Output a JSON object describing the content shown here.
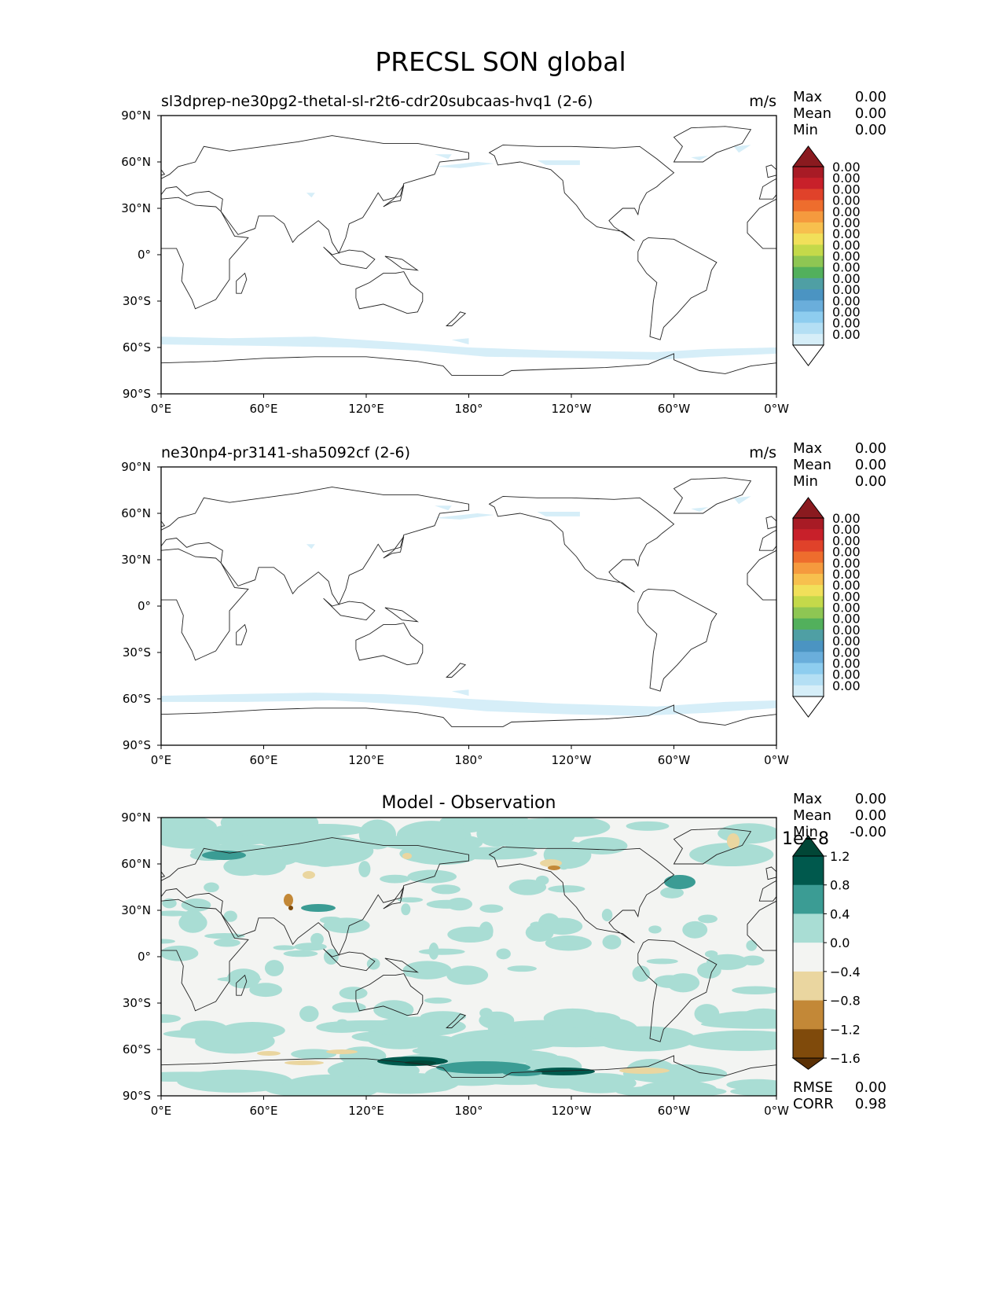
{
  "figure": {
    "title": "PRECSL SON global"
  },
  "x_ticks": [
    "0°E",
    "60°E",
    "120°E",
    "180°",
    "120°W",
    "60°W",
    "0°W"
  ],
  "y_ticks": [
    "90°N",
    "60°N",
    "30°N",
    "0°",
    "30°S",
    "60°S",
    "90°S"
  ],
  "stat_labels": {
    "max": "Max",
    "mean": "Mean",
    "min": "Min",
    "rmse": "RMSE",
    "corr": "CORR"
  },
  "panels": [
    {
      "title": "sl3dprep-ne30pg2-thetal-sl-r2t6-cdr20subcaas-hvq1 (2-6)",
      "units": "m/s",
      "stats": {
        "max": "0.00",
        "mean": "0.00",
        "min": "0.00"
      }
    },
    {
      "title": "ne30np4-pr3141-sha5092cf (2-6)",
      "units": "m/s",
      "stats": {
        "max": "0.00",
        "mean": "0.00",
        "min": "0.00"
      }
    },
    {
      "title": "Model - Observation",
      "stats": {
        "max": "0.00",
        "mean": "0.00",
        "min": "-0.00",
        "rmse": "0.00",
        "corr": "0.98"
      },
      "colorbar_offset": "1e−8"
    }
  ],
  "chart_data": [
    {
      "type": "heatmap",
      "title": "sl3dprep-ne30pg2-thetal-sl-r2t6-cdr20subcaas-hvq1 (2-6)",
      "units": "m/s",
      "projection": "PlateCarree, central longitude 180",
      "xlim": [
        0,
        360
      ],
      "ylim": [
        -90,
        90
      ],
      "x_tick_values": [
        0,
        60,
        120,
        180,
        240,
        300,
        360
      ],
      "y_tick_values": [
        90,
        60,
        30,
        0,
        -30,
        -60,
        -90
      ],
      "colorbar": {
        "labels": [
          "0.00",
          "0.00",
          "0.00",
          "0.00",
          "0.00",
          "0.00",
          "0.00",
          "0.00",
          "0.00",
          "0.00",
          "0.00",
          "0.00",
          "0.00",
          "0.00",
          "0.00",
          "0.00"
        ],
        "colors": [
          "#ffffff",
          "#d6eef8",
          "#b4dff4",
          "#8ecdef",
          "#6aaedb",
          "#4b94c2",
          "#4f9fa4",
          "#52b05c",
          "#8ec653",
          "#c4d94a",
          "#f1e05a",
          "#f7c04e",
          "#f59a3e",
          "#ee6d2d",
          "#e0422a",
          "#c8202a",
          "#a81b25",
          "#8a1a1f"
        ],
        "extend": "both"
      },
      "fields": [
        {
          "name": "Southern Ocean band",
          "color": "#d6eef8",
          "lat_range": [
            -66,
            -52
          ]
        },
        {
          "name": "North Pacific / Atlantic patches",
          "color": "#d6eef8",
          "lat_range": [
            55,
            70
          ]
        }
      ]
    },
    {
      "type": "heatmap",
      "title": "ne30np4-pr3141-sha5092cf (2-6)",
      "units": "m/s",
      "projection": "PlateCarree, central longitude 180",
      "xlim": [
        0,
        360
      ],
      "ylim": [
        -90,
        90
      ],
      "x_tick_values": [
        0,
        60,
        120,
        180,
        240,
        300,
        360
      ],
      "y_tick_values": [
        90,
        60,
        30,
        0,
        -30,
        -60,
        -90
      ],
      "colorbar": {
        "labels": [
          "0.00",
          "0.00",
          "0.00",
          "0.00",
          "0.00",
          "0.00",
          "0.00",
          "0.00",
          "0.00",
          "0.00",
          "0.00",
          "0.00",
          "0.00",
          "0.00",
          "0.00",
          "0.00"
        ],
        "colors": [
          "#ffffff",
          "#d6eef8",
          "#b4dff4",
          "#8ecdef",
          "#6aaedb",
          "#4b94c2",
          "#4f9fa4",
          "#52b05c",
          "#8ec653",
          "#c4d94a",
          "#f1e05a",
          "#f7c04e",
          "#f59a3e",
          "#ee6d2d",
          "#e0422a",
          "#c8202a",
          "#a81b25",
          "#8a1a1f"
        ],
        "extend": "both"
      },
      "fields": [
        {
          "name": "Southern Ocean band",
          "color": "#d6eef8",
          "lat_range": [
            -68,
            -52
          ]
        },
        {
          "name": "North Pacific / Atlantic patches",
          "color": "#d6eef8",
          "lat_range": [
            55,
            70
          ]
        }
      ]
    },
    {
      "type": "heatmap",
      "title": "Model - Observation",
      "projection": "PlateCarree, central longitude 180",
      "xlim": [
        0,
        360
      ],
      "ylim": [
        -90,
        90
      ],
      "x_tick_values": [
        0,
        60,
        120,
        180,
        240,
        300,
        360
      ],
      "y_tick_values": [
        90,
        60,
        30,
        0,
        -30,
        -60,
        -90
      ],
      "colorbar": {
        "labels": [
          "1.2",
          "0.8",
          "0.4",
          "0.0",
          "−0.4",
          "−0.8",
          "−1.2",
          "−1.6"
        ],
        "levels": [
          1.2,
          0.8,
          0.4,
          0.0,
          -0.4,
          -0.8,
          -1.2,
          -1.6
        ],
        "colors": [
          "#014636",
          "#00594d",
          "#3b9c94",
          "#a9ddd4",
          "#f3f4f2",
          "#ead6a0",
          "#c38837",
          "#7f4a0b",
          "#5a3005"
        ],
        "extend": "both",
        "offset": "1e−8"
      }
    }
  ]
}
